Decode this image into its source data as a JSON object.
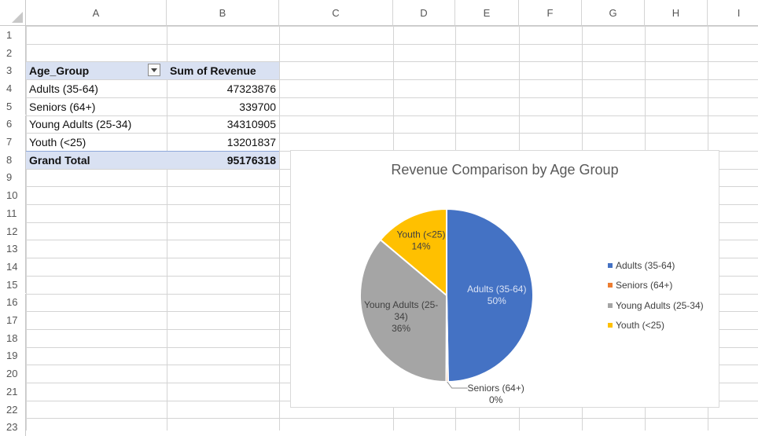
{
  "columns": [
    "A",
    "B",
    "C",
    "D",
    "E",
    "F",
    "G",
    "H",
    "I"
  ],
  "rows": [
    "1",
    "2",
    "3",
    "4",
    "5",
    "6",
    "7",
    "8",
    "9",
    "10",
    "11",
    "12",
    "13",
    "14",
    "15",
    "16",
    "17",
    "18",
    "19",
    "20",
    "21",
    "22",
    "23"
  ],
  "pivot": {
    "header": {
      "label_col": "Age_Group",
      "value_col": "Sum of Revenue"
    },
    "items": [
      {
        "label": "Adults (35-64)",
        "value": "47323876"
      },
      {
        "label": "Seniors (64+)",
        "value": "339700"
      },
      {
        "label": "Young Adults (25-34)",
        "value": "34310905"
      },
      {
        "label": "Youth (<25)",
        "value": "13201837"
      }
    ],
    "total": {
      "label": "Grand Total",
      "value": "95176318"
    }
  },
  "chart_data": {
    "type": "pie",
    "title": "Revenue Comparison by Age Group",
    "categories": [
      "Adults (35-64)",
      "Seniors (64+)",
      "Young Adults (25-34)",
      "Youth (<25)"
    ],
    "values": [
      47323876,
      339700,
      34310905,
      13201837
    ],
    "percent_labels": [
      "50%",
      "0%",
      "36%",
      "14%"
    ],
    "colors": [
      "#4472c4",
      "#ed7d31",
      "#a5a5a5",
      "#ffc000"
    ],
    "legend_position": "right",
    "data_labels": [
      {
        "lines": [
          "Adults (35-64)",
          "50%"
        ]
      },
      {
        "lines": [
          "Seniors (64+)",
          "0%"
        ]
      },
      {
        "lines": [
          "Young Adults (25-",
          "34)",
          "36%"
        ]
      },
      {
        "lines": [
          "Youth (<25)",
          "14%"
        ]
      }
    ]
  }
}
